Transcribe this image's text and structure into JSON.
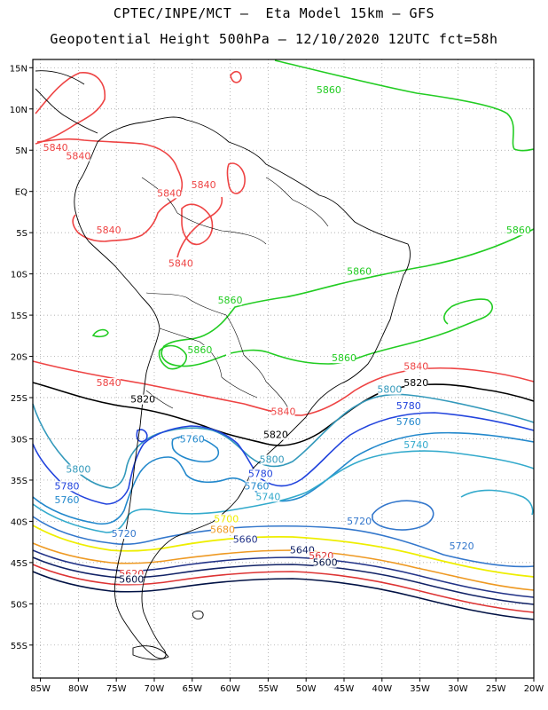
{
  "title": {
    "line1": "CPTEC/INPE/MCT –  Eta Model 15km – GFS",
    "line2": "Geopotential Height 500hPa – 12/10/2020 12UTC fct=58h"
  },
  "axes": {
    "lon_labels": [
      "85W",
      "80W",
      "75W",
      "70W",
      "65W",
      "60W",
      "55W",
      "50W",
      "45W",
      "40W",
      "35W",
      "30W",
      "25W",
      "20W"
    ],
    "lat_labels": [
      "15N",
      "10N",
      "5N",
      "EQ",
      "5S",
      "10S",
      "15S",
      "20S",
      "25S",
      "30S",
      "35S",
      "40S",
      "45S",
      "50S",
      "55S"
    ],
    "lon_range": [
      -86,
      -20
    ],
    "lat_range": [
      16,
      -59
    ]
  },
  "colors": {
    "c5860": "#22cc22",
    "c5840": "#ee4444",
    "c5820": "#000000",
    "c5800": "#3399bb",
    "c5780": "#2244dd",
    "c5760": "#2288cc",
    "c5740": "#33aacc",
    "c5720": "#3377cc",
    "c5700": "#eeee00",
    "c5680": "#ee9922",
    "c5660": "#223388",
    "c5640": "#112266",
    "c5620": "#dd3333",
    "c5600": "#001144",
    "land": "#000000"
  },
  "contour_labels": [
    {
      "text": "5860",
      "lon": -47.0,
      "lat": 12.0,
      "color": "c5860"
    },
    {
      "text": "5860",
      "lon": -22.0,
      "lat": -5.0,
      "color": "c5860"
    },
    {
      "text": "5860",
      "lon": -43.0,
      "lat": -10.0,
      "color": "c5860"
    },
    {
      "text": "5860",
      "lon": -60.0,
      "lat": -13.5,
      "color": "c5860"
    },
    {
      "text": "5860",
      "lon": -64.0,
      "lat": -19.5,
      "color": "c5860"
    },
    {
      "text": "5860",
      "lon": -45.0,
      "lat": -20.5,
      "color": "c5860"
    },
    {
      "text": "5840",
      "lon": -83.0,
      "lat": 5.0,
      "color": "c5840"
    },
    {
      "text": "5840",
      "lon": -80.0,
      "lat": 4.0,
      "color": "c5840"
    },
    {
      "text": "5840",
      "lon": -68.0,
      "lat": -0.5,
      "color": "c5840"
    },
    {
      "text": "5840",
      "lon": -63.5,
      "lat": 0.5,
      "color": "c5840"
    },
    {
      "text": "5840",
      "lon": -76.0,
      "lat": -5.0,
      "color": "c5840"
    },
    {
      "text": "5840",
      "lon": -66.5,
      "lat": -9.0,
      "color": "c5840"
    },
    {
      "text": "5840",
      "lon": -76.0,
      "lat": -23.5,
      "color": "c5840"
    },
    {
      "text": "5840",
      "lon": -35.5,
      "lat": -21.5,
      "color": "c5840"
    },
    {
      "text": "5840",
      "lon": -53.0,
      "lat": -27.0,
      "color": "c5840"
    },
    {
      "text": "5820",
      "lon": -71.5,
      "lat": -25.5,
      "color": "c5820"
    },
    {
      "text": "5820",
      "lon": -35.5,
      "lat": -23.5,
      "color": "c5820"
    },
    {
      "text": "5820",
      "lon": -54.0,
      "lat": -29.8,
      "color": "c5820"
    },
    {
      "text": "5800",
      "lon": -39.0,
      "lat": -24.3,
      "color": "c5800"
    },
    {
      "text": "5800",
      "lon": -80.0,
      "lat": -34.0,
      "color": "c5800"
    },
    {
      "text": "5800",
      "lon": -54.5,
      "lat": -32.8,
      "color": "c5800"
    },
    {
      "text": "5780",
      "lon": -36.5,
      "lat": -26.3,
      "color": "c5780"
    },
    {
      "text": "5780",
      "lon": -81.5,
      "lat": -36.0,
      "color": "c5780"
    },
    {
      "text": "5780",
      "lon": -56.0,
      "lat": -34.5,
      "color": "c5780"
    },
    {
      "text": "5760",
      "lon": -65.0,
      "lat": -30.3,
      "color": "c5760"
    },
    {
      "text": "5760",
      "lon": -36.5,
      "lat": -28.2,
      "color": "c5760"
    },
    {
      "text": "5760",
      "lon": -81.5,
      "lat": -37.7,
      "color": "c5760"
    },
    {
      "text": "5760",
      "lon": -56.5,
      "lat": -36.0,
      "color": "c5760"
    },
    {
      "text": "5740",
      "lon": -35.5,
      "lat": -31.0,
      "color": "c5740"
    },
    {
      "text": "5740",
      "lon": -55.0,
      "lat": -37.3,
      "color": "c5740"
    },
    {
      "text": "5720",
      "lon": -74.0,
      "lat": -41.8,
      "color": "c5720"
    },
    {
      "text": "5720",
      "lon": -43.0,
      "lat": -40.3,
      "color": "c5720"
    },
    {
      "text": "5720",
      "lon": -29.5,
      "lat": -43.3,
      "color": "c5720"
    },
    {
      "text": "5700",
      "lon": -60.5,
      "lat": -40.0,
      "color": "c5700"
    },
    {
      "text": "5680",
      "lon": -61.0,
      "lat": -41.3,
      "color": "c5680"
    },
    {
      "text": "5660",
      "lon": -58.0,
      "lat": -42.5,
      "color": "c5660"
    },
    {
      "text": "5640",
      "lon": -50.5,
      "lat": -43.8,
      "color": "c5640"
    },
    {
      "text": "5620",
      "lon": -48.0,
      "lat": -44.5,
      "color": "c5620"
    },
    {
      "text": "5620",
      "lon": -73.0,
      "lat": -46.6,
      "color": "c5620"
    },
    {
      "text": "5600",
      "lon": -47.5,
      "lat": -45.3,
      "color": "c5600"
    },
    {
      "text": "5600",
      "lon": -73.0,
      "lat": -47.3,
      "color": "c5600"
    }
  ]
}
